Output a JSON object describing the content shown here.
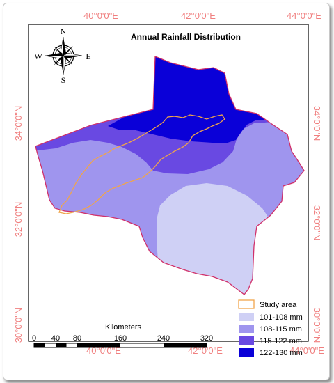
{
  "title": "Annual Rainfall Distribution",
  "graticule": {
    "top": [
      "40°0'0\"E",
      "42°0'0\"E",
      "44°0'0\"E"
    ],
    "bottom": [
      "40°0'0\"E",
      "42°0'0\"E",
      "44°0'0\"E"
    ],
    "left": [
      "34°0'0\"N",
      "32°0'0\"N",
      "30°0'0\"N"
    ],
    "right": [
      "34°0'0\"N",
      "32°0'0\"N",
      "30°0'0\"N"
    ]
  },
  "compass": {
    "n": "N",
    "s": "S",
    "e": "E",
    "w": "W"
  },
  "legend": {
    "study_area": "Study area",
    "classes": [
      {
        "label": "101-108 mm",
        "color": "#cfd0f5"
      },
      {
        "label": "108-115 mm",
        "color": "#9f95ee"
      },
      {
        "label": "115-122 mm",
        "color": "#6949e2"
      },
      {
        "label": "122-130 mm",
        "color": "#0a00d8"
      }
    ],
    "study_area_color": "#f0a54a",
    "boundary_color": "#d0306a"
  },
  "scalebar": {
    "unit": "Kilometers",
    "ticks": [
      "0",
      "40",
      "80",
      "160",
      "240",
      "320"
    ]
  },
  "colors": {
    "graticule_label": "#f08080"
  }
}
